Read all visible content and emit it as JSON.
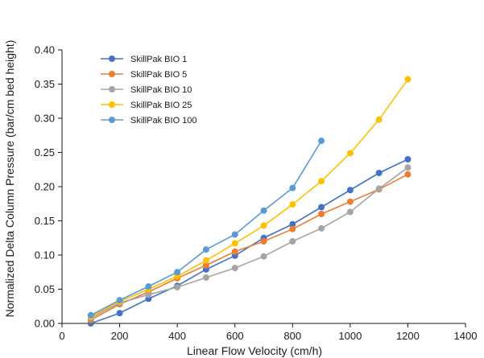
{
  "chart_data": {
    "type": "line",
    "title": "",
    "xlabel": "Linear Flow Velocity (cm/h)",
    "ylabel": "Normalized Delta Column Pressure (bar/cm bed height)",
    "xlim": [
      0,
      1400
    ],
    "ylim": [
      0,
      0.4
    ],
    "xticks": [
      0,
      200,
      400,
      600,
      800,
      1000,
      1200,
      1400
    ],
    "xtick_labels": [
      "0",
      "200",
      "400",
      "600",
      "800",
      "1000",
      "1200",
      "1400"
    ],
    "yticks": [
      0,
      0.05,
      0.1,
      0.15,
      0.2,
      0.25,
      0.3,
      0.35,
      0.4
    ],
    "ytick_labels": [
      "0.00",
      "0.05",
      "0.10",
      "0.15",
      "0.20",
      "0.25",
      "0.30",
      "0.35",
      "0.40"
    ],
    "grid": false,
    "legend_position": "top-left",
    "series": [
      {
        "name": "SkillPak BIO 1",
        "color": "#4472c4",
        "x": [
          100,
          200,
          300,
          400,
          500,
          600,
          700,
          800,
          900,
          1000,
          1100,
          1200
        ],
        "y": [
          0.0,
          0.015,
          0.036,
          0.055,
          0.079,
          0.099,
          0.125,
          0.145,
          0.17,
          0.195,
          0.22,
          0.24
        ]
      },
      {
        "name": "SkillPak BIO 5",
        "color": "#ed7d31",
        "x": [
          100,
          200,
          300,
          400,
          500,
          600,
          700,
          800,
          900,
          1000,
          1100,
          1200
        ],
        "y": [
          0.005,
          0.028,
          0.046,
          0.066,
          0.085,
          0.105,
          0.12,
          0.138,
          0.16,
          0.178,
          0.196,
          0.218
        ]
      },
      {
        "name": "SkillPak BIO 10",
        "color": "#a5a5a5",
        "x": [
          100,
          200,
          300,
          400,
          500,
          600,
          700,
          800,
          900,
          1000,
          1100,
          1200
        ],
        "y": [
          0.008,
          0.03,
          0.042,
          0.053,
          0.067,
          0.081,
          0.098,
          0.12,
          0.139,
          0.163,
          0.197,
          0.228
        ]
      },
      {
        "name": "SkillPak BIO 25",
        "color": "#ffc000",
        "x": [
          100,
          200,
          300,
          400,
          500,
          600,
          700,
          800,
          900,
          1000,
          1100,
          1200
        ],
        "y": [
          0.01,
          0.032,
          0.05,
          0.069,
          0.092,
          0.117,
          0.143,
          0.174,
          0.208,
          0.249,
          0.298,
          0.357
        ]
      },
      {
        "name": "SkillPak BIO 100",
        "color": "#5b9bd5",
        "x": [
          100,
          200,
          300,
          400,
          500,
          600,
          700,
          800,
          900
        ],
        "y": [
          0.012,
          0.034,
          0.054,
          0.075,
          0.108,
          0.13,
          0.165,
          0.198,
          0.267
        ]
      }
    ]
  }
}
